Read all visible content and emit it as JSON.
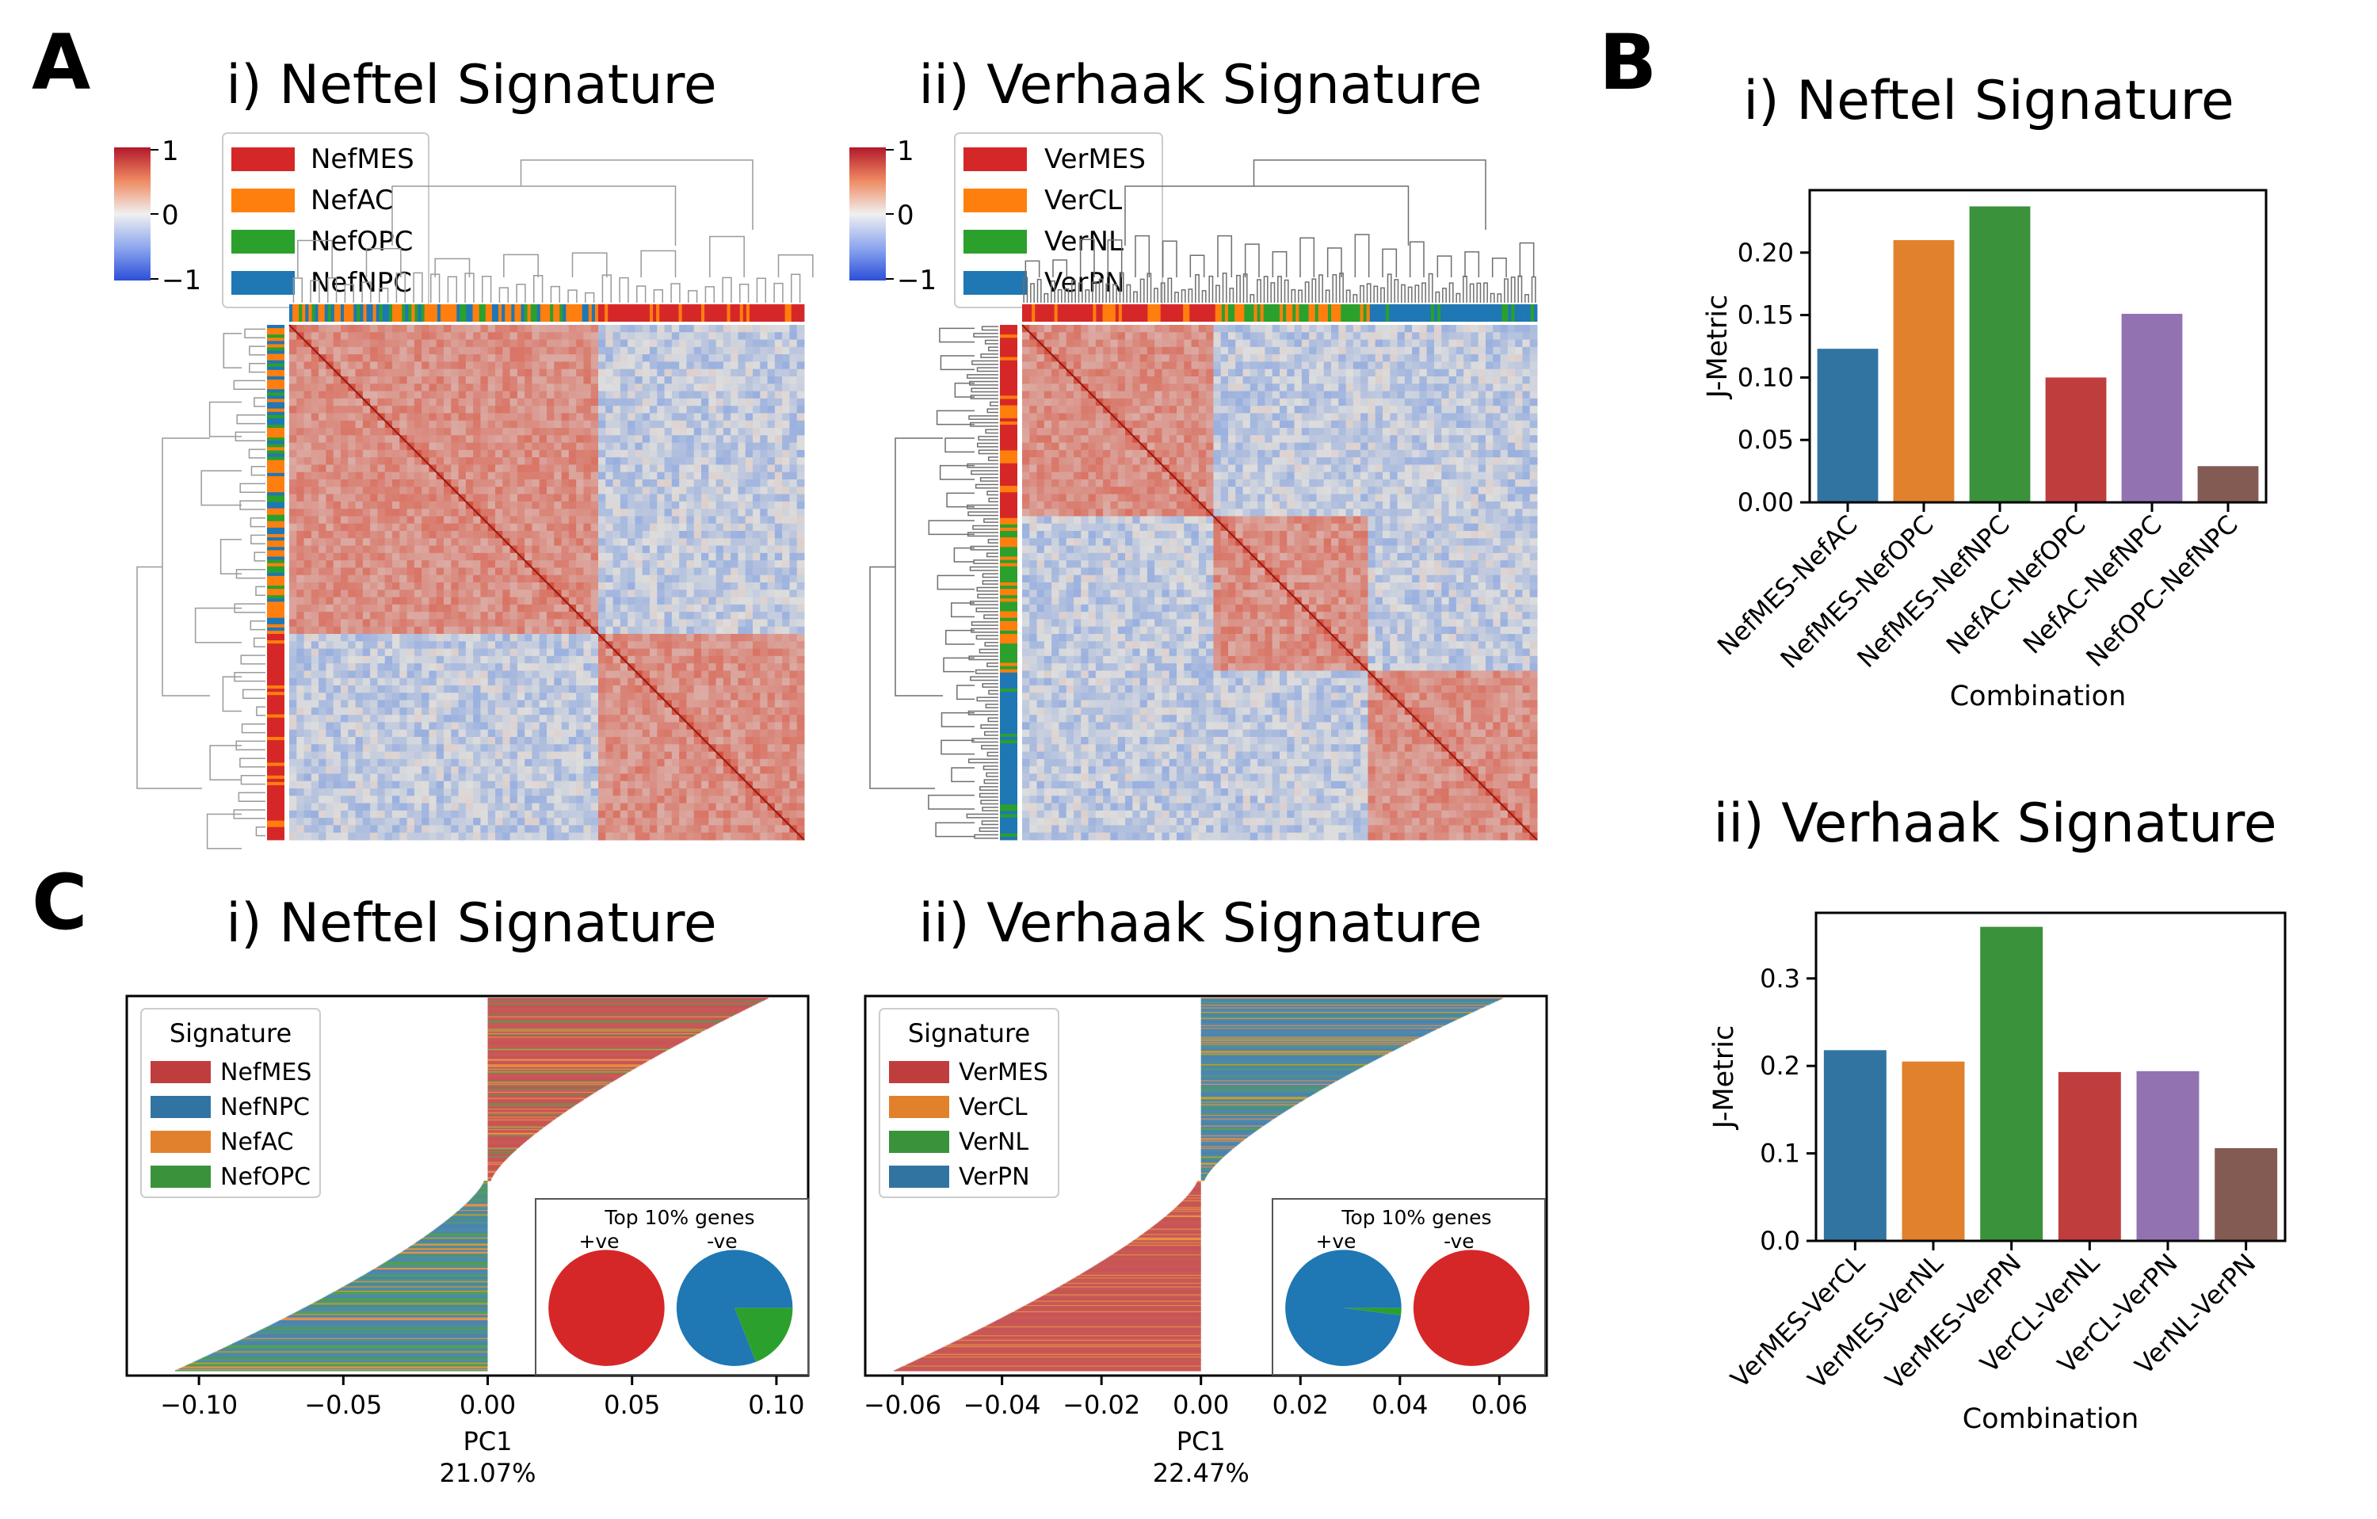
{
  "colors": {
    "red": "#d62728",
    "orange": "#ff7f0e",
    "green": "#2ca02c",
    "blue": "#1f77b4",
    "bar_blue": "#3274a1",
    "bar_orange": "#e1812c",
    "bar_green": "#3a923a",
    "bar_red": "#c03d3e",
    "bar_purple": "#9372b2",
    "bar_brown": "#845b53",
    "heat_pos": "#d73027",
    "heat_neg": "#3b6fd8",
    "heat_mid": "#dddddd",
    "dendro": "#7f7f7f"
  },
  "panels": {
    "A": {
      "letter": "A",
      "i_title": "i) Neftel Signature",
      "ii_title": "ii) Verhaak Signature",
      "colorbar_ticks": [
        "1",
        "0",
        "−1"
      ],
      "i_legend": [
        "NefMES",
        "NefAC",
        "NefOPC",
        "NefNPC"
      ],
      "ii_legend": [
        "VerMES",
        "VerCL",
        "VerNL",
        "VerPN"
      ]
    },
    "B": {
      "letter": "B",
      "i_title": "i) Neftel Signature",
      "ii_title": "ii) Verhaak Signature"
    },
    "C": {
      "letter": "C",
      "i_title": "i) Neftel Signature",
      "ii_title": "ii) Verhaak Signature",
      "legend_title": "Signature",
      "i_legend": [
        "NefMES",
        "NefNPC",
        "NefAC",
        "NefOPC"
      ],
      "ii_legend": [
        "VerMES",
        "VerCL",
        "VerNL",
        "VerPN"
      ],
      "inset_title": "Top 10% genes",
      "inset_pos": "+ve",
      "inset_neg": "-ve"
    }
  },
  "chart_data": [
    {
      "id": "B-i",
      "type": "bar",
      "title": "i) Neftel Signature",
      "xlabel": "Combination",
      "ylabel": "J-Metric",
      "categories": [
        "NefMES-NefAC",
        "NefMES-NefOPC",
        "NefMES-NefNPC",
        "NefAC-NefOPC",
        "NefAC-NefNPC",
        "NefOPC-NefNPC"
      ],
      "values": [
        0.123,
        0.21,
        0.237,
        0.1,
        0.151,
        0.029
      ],
      "ylim": [
        0,
        0.25
      ],
      "yticks": [
        "0.00",
        "0.05",
        "0.10",
        "0.15",
        "0.20"
      ],
      "grid": false
    },
    {
      "id": "B-ii",
      "type": "bar",
      "title": "ii) Verhaak Signature",
      "xlabel": "Combination",
      "ylabel": "J-Metric",
      "categories": [
        "VerMES-VerCL",
        "VerMES-VerNL",
        "VerMES-VerPN",
        "VerCL-VerNL",
        "VerCL-VerPN",
        "VerNL-VerPN"
      ],
      "values": [
        0.218,
        0.205,
        0.359,
        0.193,
        0.194,
        0.106
      ],
      "ylim": [
        0,
        0.375
      ],
      "yticks": [
        "0.0",
        "0.1",
        "0.2",
        "0.3"
      ],
      "grid": false
    },
    {
      "id": "C-i",
      "type": "bar",
      "orientation": "horizontal",
      "title": "i) Neftel Signature",
      "xlabel": "PC1",
      "xlabel_sub": "21.07%",
      "xlim": [
        -0.125,
        0.111
      ],
      "xticks": [
        "−0.10",
        "−0.05",
        "0.00",
        "0.05",
        "0.10"
      ],
      "xtick_values": [
        -0.1,
        -0.05,
        0.0,
        0.05,
        0.1
      ],
      "loading_range": [
        -0.107,
        0.096
      ],
      "legend_title": "Signature",
      "legend_position": "upper left",
      "series": [
        {
          "name": "NefMES",
          "color": "#c03d3e"
        },
        {
          "name": "NefNPC",
          "color": "#3274a1"
        },
        {
          "name": "NefAC",
          "color": "#e1812c"
        },
        {
          "name": "NefOPC",
          "color": "#3a923a"
        }
      ],
      "inset": {
        "title": "Top 10% genes",
        "pies": [
          {
            "label": "+ve",
            "slices": [
              {
                "name": "red",
                "value": 1.0
              }
            ]
          },
          {
            "label": "-ve",
            "slices": [
              {
                "name": "blue",
                "value": 0.81
              },
              {
                "name": "green",
                "value": 0.19
              }
            ]
          }
        ]
      }
    },
    {
      "id": "C-ii",
      "type": "bar",
      "orientation": "horizontal",
      "title": "ii) Verhaak Signature",
      "xlabel": "PC1",
      "xlabel_sub": "22.47%",
      "xlim": [
        -0.0675,
        0.0695
      ],
      "xticks": [
        "−0.06",
        "−0.04",
        "−0.02",
        "0.00",
        "0.02",
        "0.04",
        "0.06"
      ],
      "xtick_values": [
        -0.06,
        -0.04,
        -0.02,
        0.0,
        0.02,
        0.04,
        0.06
      ],
      "loading_range": [
        -0.061,
        0.06
      ],
      "legend_title": "Signature",
      "legend_position": "upper left",
      "series": [
        {
          "name": "VerMES",
          "color": "#c03d3e"
        },
        {
          "name": "VerCL",
          "color": "#e1812c"
        },
        {
          "name": "VerNL",
          "color": "#3a923a"
        },
        {
          "name": "VerPN",
          "color": "#3274a1"
        }
      ],
      "inset": {
        "title": "Top 10% genes",
        "pies": [
          {
            "label": "+ve",
            "slices": [
              {
                "name": "blue",
                "value": 0.98
              },
              {
                "name": "green",
                "value": 0.02
              }
            ]
          },
          {
            "label": "-ve",
            "slices": [
              {
                "name": "red",
                "value": 1.0
              }
            ]
          }
        ]
      }
    },
    {
      "id": "A-i",
      "type": "heatmap",
      "title": "i) Neftel Signature",
      "value_range": [
        -1,
        1
      ],
      "legend": [
        "NefMES",
        "NefAC",
        "NefOPC",
        "NefNPC"
      ],
      "cluster_order": [
        "NefAC/NefNPC/NefOPC mix",
        "NefMES"
      ],
      "cluster_fractions": [
        0.6,
        0.4
      ]
    },
    {
      "id": "A-ii",
      "type": "heatmap",
      "title": "ii) Verhaak Signature",
      "value_range": [
        -1,
        1
      ],
      "legend": [
        "VerMES",
        "VerCL",
        "VerNL",
        "VerPN"
      ],
      "cluster_order": [
        "VerMES",
        "VerCL/VerNL",
        "VerPN"
      ],
      "cluster_fractions": [
        0.37,
        0.3,
        0.33
      ]
    }
  ]
}
